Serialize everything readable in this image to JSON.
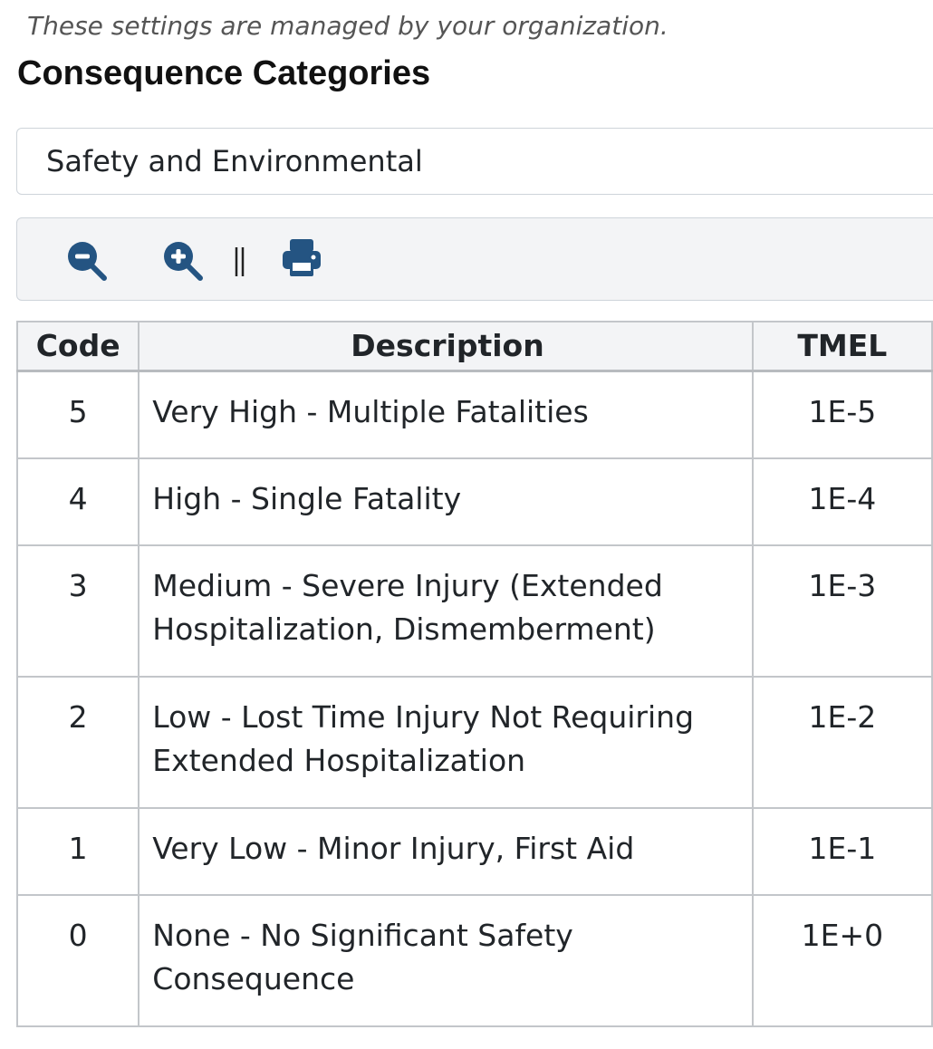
{
  "notice": "These settings are managed by your organization.",
  "title": "Consequence Categories",
  "select": {
    "value": "Safety and Environmental"
  },
  "table": {
    "headers": [
      "Code",
      "Description",
      "TMEL"
    ],
    "rows": [
      [
        5,
        "Very High - Multiple Fatalities",
        "1E-5"
      ],
      [
        4,
        "High - Single Fatality",
        "1E-4"
      ],
      [
        3,
        "Medium - Severe Injury (Extended Hospitalization, Dismemberment)",
        "1E-3"
      ],
      [
        2,
        "Low - Lost Time Injury Not Requiring Extended Hospitalization",
        "1E-2"
      ],
      [
        1,
        "Very Low - Minor Injury, First Aid",
        "1E-1"
      ],
      [
        0,
        "None - No Significant Safety Consequence",
        "1E+0"
      ]
    ]
  }
}
